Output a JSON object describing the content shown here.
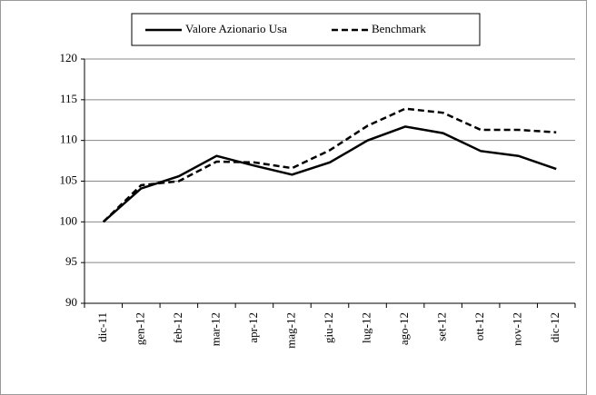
{
  "chart_data": {
    "type": "line",
    "categories": [
      "dic-11",
      "gen-12",
      "feb-12",
      "mar-12",
      "apr-12",
      "mag-12",
      "giu-12",
      "lug-12",
      "ago-12",
      "set-12",
      "ott-12",
      "nov-12",
      "dic-12"
    ],
    "series": [
      {
        "name": "Valore Azionario Usa",
        "color": "#000000",
        "dash": false,
        "values": [
          100,
          104.1,
          105.6,
          108.1,
          106.9,
          105.8,
          107.3,
          110,
          111.7,
          110.9,
          108.7,
          108.1,
          106.5
        ]
      },
      {
        "name": "Benchmark",
        "color": "#000000",
        "dash": true,
        "values": [
          100,
          104.5,
          105.0,
          107.4,
          107.3,
          106.6,
          108.8,
          111.8,
          113.9,
          113.4,
          111.3,
          111.3,
          111.0
        ]
      }
    ],
    "ylim": [
      90,
      120
    ],
    "yticks": [
      90,
      95,
      100,
      105,
      110,
      115,
      120
    ],
    "grid": true,
    "legend": "top"
  }
}
